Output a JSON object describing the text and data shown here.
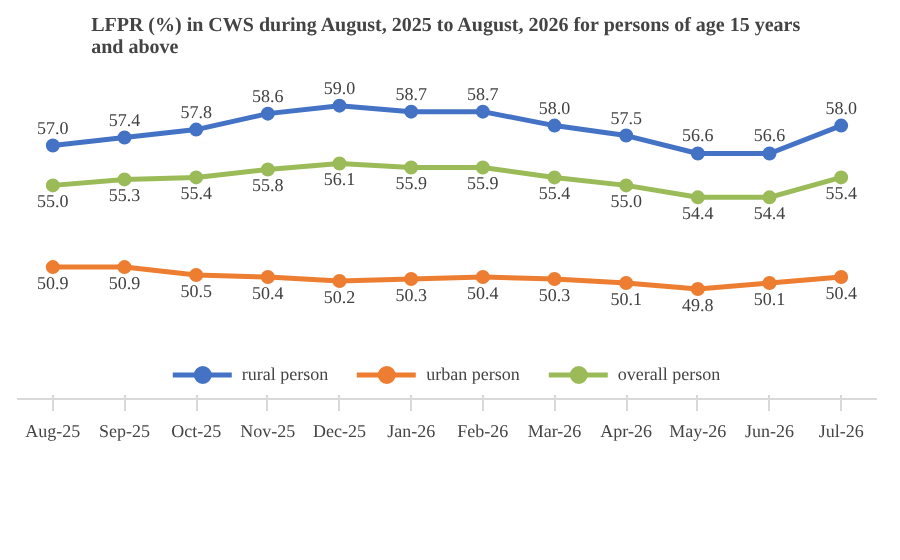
{
  "chart_data": {
    "type": "line",
    "title": "LFPR (%) in CWS during August, 2025 to August, 2026 for persons of age 15 years and above",
    "categories": [
      "Aug-25",
      "Sep-25",
      "Oct-25",
      "Nov-25",
      "Dec-25",
      "Jan-26",
      "Feb-26",
      "Mar-26",
      "Apr-26",
      "May-26",
      "Jun-26",
      "Jul-26"
    ],
    "series": [
      {
        "name": "rural person",
        "color": "#4472c4",
        "values": [
          57.0,
          57.4,
          57.8,
          58.6,
          59.0,
          58.7,
          58.7,
          58.0,
          57.5,
          56.6,
          56.6,
          58.0
        ],
        "value_labels": [
          "57.0",
          "57.4",
          "57.8",
          "58.6",
          "59.0",
          "58.7",
          "58.7",
          "58.0",
          "57.5",
          "56.6",
          "56.6",
          "58.0"
        ]
      },
      {
        "name": "urban person",
        "color": "#ed7d31",
        "values": [
          50.9,
          50.9,
          50.5,
          50.4,
          50.2,
          50.3,
          50.4,
          50.3,
          50.1,
          49.8,
          50.1,
          50.4
        ],
        "value_labels": [
          "50.9",
          "50.9",
          "50.5",
          "50.4",
          "50.2",
          "50.3",
          "50.4",
          "50.3",
          "50.1",
          "49.8",
          "50.1",
          "50.4"
        ]
      },
      {
        "name": "overall person",
        "color": "#9bbb59",
        "values": [
          55.0,
          55.3,
          55.4,
          55.8,
          56.1,
          55.9,
          55.9,
          55.4,
          55.0,
          54.4,
          54.4,
          55.4
        ],
        "value_labels": [
          "55.0",
          "55.3",
          "55.4",
          "55.8",
          "56.1",
          "55.9",
          "55.9",
          "55.4",
          "55.0",
          "54.4",
          "54.4",
          "55.4"
        ]
      }
    ],
    "tick_labels": "x",
    "legend": "bottom",
    "marker": "circle",
    "line_style": "solid"
  }
}
